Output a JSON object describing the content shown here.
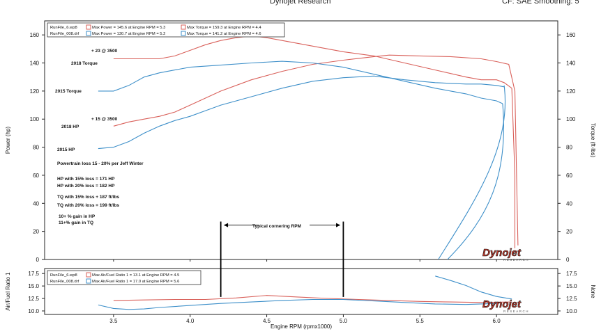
{
  "header": {
    "center": "Dynojet Research",
    "right": "CF: SAE Smoothing: 5"
  },
  "chart_data": [
    {
      "type": "line",
      "ylabel_left": "Power (hp)",
      "ylabel_right": "Torque (ft-lbs)",
      "ylim": [
        0,
        170
      ],
      "xlim": [
        3.05,
        6.4
      ],
      "yticks": [
        0,
        20,
        40,
        60,
        80,
        100,
        120,
        140,
        160
      ],
      "legend": [
        {
          "file": "RunFile_6.wp8",
          "max_power": "Max Power = 145.6 at Engine RPM = 5.3",
          "max_torque": "Max Torque = 159.3 at Engine RPM = 4.4"
        },
        {
          "file": "RunFile_008.drf",
          "max_power": "Max Power = 130.7 at Engine RPM = 5.2",
          "max_torque": "Max Torque = 141.2 at Engine RPM = 4.6"
        }
      ],
      "series": [
        {
          "name": "RunFile_6.wp8 Power",
          "color": "#d9605a",
          "x": [
            3.5,
            3.6,
            3.7,
            3.8,
            3.9,
            4.0,
            4.2,
            4.4,
            4.6,
            4.8,
            5.0,
            5.2,
            5.3,
            5.5,
            5.7,
            5.9,
            6.0,
            6.08,
            6.12,
            6.14
          ],
          "y": [
            95,
            98,
            100,
            102,
            105,
            110,
            120,
            128,
            134,
            139,
            142,
            144.5,
            145.6,
            145,
            144.5,
            143,
            141,
            139,
            120,
            10
          ]
        },
        {
          "name": "RunFile_6.wp8 Torque",
          "color": "#d9605a",
          "x": [
            3.5,
            3.6,
            3.8,
            3.9,
            4.0,
            4.1,
            4.2,
            4.3,
            4.4,
            4.5,
            4.6,
            4.8,
            5.0,
            5.2,
            5.4,
            5.6,
            5.8,
            5.9,
            6.0,
            6.05,
            6.1
          ],
          "y": [
            143,
            143,
            143,
            145,
            149,
            153,
            156,
            158,
            159.3,
            158,
            156,
            152,
            148,
            145,
            140,
            135,
            130,
            128,
            128,
            126,
            122
          ]
        },
        {
          "name": "RunFile_008.drf Power",
          "color": "#3d8fc9",
          "x": [
            3.4,
            3.5,
            3.6,
            3.7,
            3.8,
            3.9,
            4.0,
            4.1,
            4.2,
            4.4,
            4.6,
            4.8,
            5.0,
            5.2,
            5.4,
            5.6,
            5.8,
            5.9,
            6.0,
            6.05
          ],
          "y": [
            79,
            80,
            84,
            90,
            95,
            99,
            102,
            106,
            110,
            116,
            122,
            127,
            129.5,
            130.7,
            128,
            126,
            125,
            125,
            124,
            123
          ]
        },
        {
          "name": "RunFile_008.drf Torque",
          "color": "#3d8fc9",
          "x": [
            3.4,
            3.5,
            3.6,
            3.7,
            3.8,
            3.9,
            4.0,
            4.2,
            4.4,
            4.6,
            4.8,
            5.0,
            5.2,
            5.4,
            5.6,
            5.8,
            5.9,
            6.0,
            6.04
          ],
          "y": [
            120,
            120,
            124,
            130,
            133,
            135,
            137,
            138.5,
            140,
            141.2,
            140,
            137,
            132,
            127,
            122,
            118,
            115,
            113,
            111
          ]
        }
      ],
      "annotations": [
        {
          "text": "+ 23 @ 3500"
        },
        {
          "text": "2018 Torque"
        },
        {
          "text": "2015 Torque"
        },
        {
          "text": "+ 15 @ 3500"
        },
        {
          "text": "2018 HP"
        },
        {
          "text": "2015 HP"
        },
        {
          "text": "Powertrain loss 15 - 20% per Jeff Winter"
        },
        {
          "text": "HP with 15% loss = 171 HP"
        },
        {
          "text": "HP with 20% loss = 182 HP"
        },
        {
          "text": "TQ with 15% loss + 187 ft/lbs"
        },
        {
          "text": "TQ with 20% loss = 199 ft/lbs"
        },
        {
          "text": "10+ % gain in HP"
        },
        {
          "text": "11+% gain in TQ"
        },
        {
          "text": "Typical cornering RPM"
        }
      ],
      "marker_lines_x": [
        4.2,
        5.0
      ]
    },
    {
      "type": "line",
      "ylabel_left": "Air/Fuel Ratio 1",
      "ylabel_right": "None",
      "ylim": [
        9.3,
        18.5
      ],
      "yticks": [
        10.0,
        12.5,
        15.0,
        17.5
      ],
      "ytick_labels": [
        "10.0",
        "12.5",
        "15.0",
        "17.5"
      ],
      "legend": [
        {
          "file": "RunFile_6.wp8",
          "max_afr": "Max Air/Fuel Ratio 1 = 13.1 at Engine RPM = 4.5"
        },
        {
          "file": "RunFile_008.drf",
          "max_afr": "Max Air/Fuel Ratio 1 = 17.0 at Engine RPM = 5.6"
        }
      ],
      "series": [
        {
          "name": "RunFile_6.wp8 AFR",
          "color": "#d9605a",
          "x": [
            3.5,
            3.7,
            3.9,
            4.1,
            4.3,
            4.5,
            4.7,
            4.9,
            5.1,
            5.3,
            5.5,
            5.7,
            5.9,
            6.1
          ],
          "y": [
            12.1,
            12.2,
            12.3,
            12.3,
            12.6,
            13.1,
            12.8,
            12.5,
            12.3,
            12.1,
            11.9,
            11.8,
            11.7,
            11.8
          ]
        },
        {
          "name": "RunFile_008.drf AFR",
          "color": "#3d8fc9",
          "x": [
            3.4,
            3.5,
            3.6,
            3.7,
            3.8,
            4.0,
            4.2,
            4.4,
            4.6,
            4.8,
            5.0,
            5.2,
            5.4,
            5.6,
            5.8,
            6.0
          ],
          "y": [
            11.2,
            10.5,
            10.3,
            10.4,
            10.7,
            11.1,
            11.5,
            11.8,
            12.1,
            12.3,
            12.3,
            12.0,
            11.7,
            11.4,
            11.3,
            11.5
          ]
        },
        {
          "name": "RunFile_008.drf AFR lean",
          "color": "#3d8fc9",
          "x": [
            5.6,
            5.7,
            5.8,
            5.9,
            6.0,
            6.1
          ],
          "y": [
            17.0,
            16.1,
            15.1,
            13.8,
            12.9,
            12.4
          ]
        }
      ],
      "marker_lines_x": [
        4.2,
        5.0
      ]
    }
  ],
  "x_axis": {
    "label": "Engine RPM (rpmx1000)",
    "ticks": [
      3.5,
      4.0,
      4.5,
      5.0,
      5.5,
      6.0
    ],
    "tick_labels": [
      "3.5",
      "4.0",
      "4.5",
      "5.0",
      "5.5",
      "6.0"
    ]
  },
  "logo": {
    "text": "Dynojet",
    "sub": "RESEARCH"
  }
}
